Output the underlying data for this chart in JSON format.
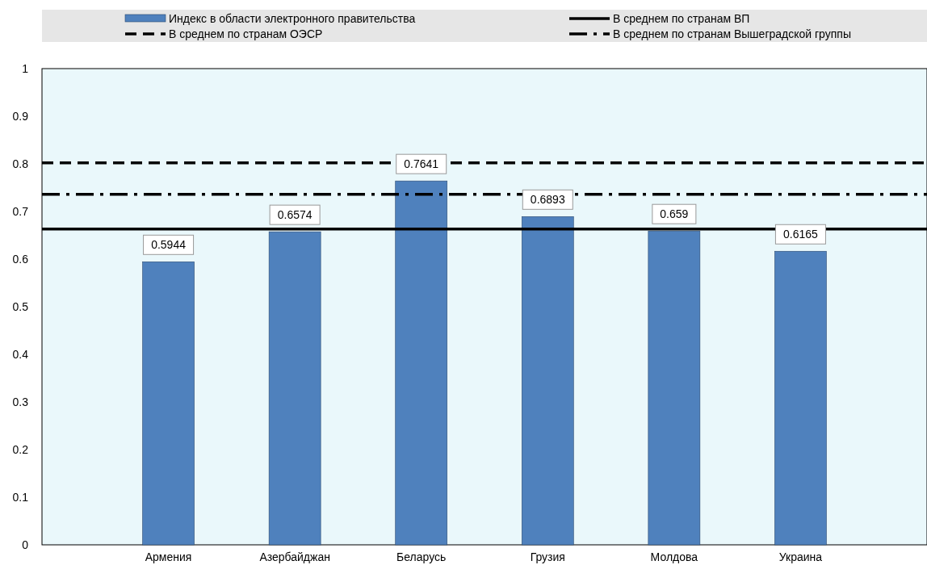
{
  "chart_data": {
    "type": "bar",
    "categories": [
      "Армения",
      "Азербайджан",
      "Беларусь",
      "Грузия",
      "Молдова",
      "Украина"
    ],
    "series": [
      {
        "name": "Индекс в области электронного правительства",
        "color": "#4f81bd",
        "values": [
          0.5944,
          0.6574,
          0.7641,
          0.6893,
          0.659,
          0.6165
        ]
      }
    ],
    "ref_lines": [
      {
        "axis": "y",
        "value": 0.663,
        "label": "В среднем по странам ВП",
        "color": "#000000",
        "line_style": "solid"
      },
      {
        "axis": "y",
        "value": 0.802,
        "label": "В среднем по странам ОЭСР",
        "color": "#000000",
        "line_style": "dashed"
      },
      {
        "axis": "y",
        "value": 0.736,
        "label": "В среднем по странам Вышеградской группы",
        "color": "#000000",
        "line_style": "dashdot"
      }
    ],
    "ylim": [
      0,
      1
    ],
    "yticks": [
      0,
      0.1,
      0.2,
      0.3,
      0.4,
      0.5,
      0.6,
      0.7,
      0.8,
      0.9,
      1
    ],
    "data_labels": true,
    "legend": "top",
    "grid": false
  }
}
